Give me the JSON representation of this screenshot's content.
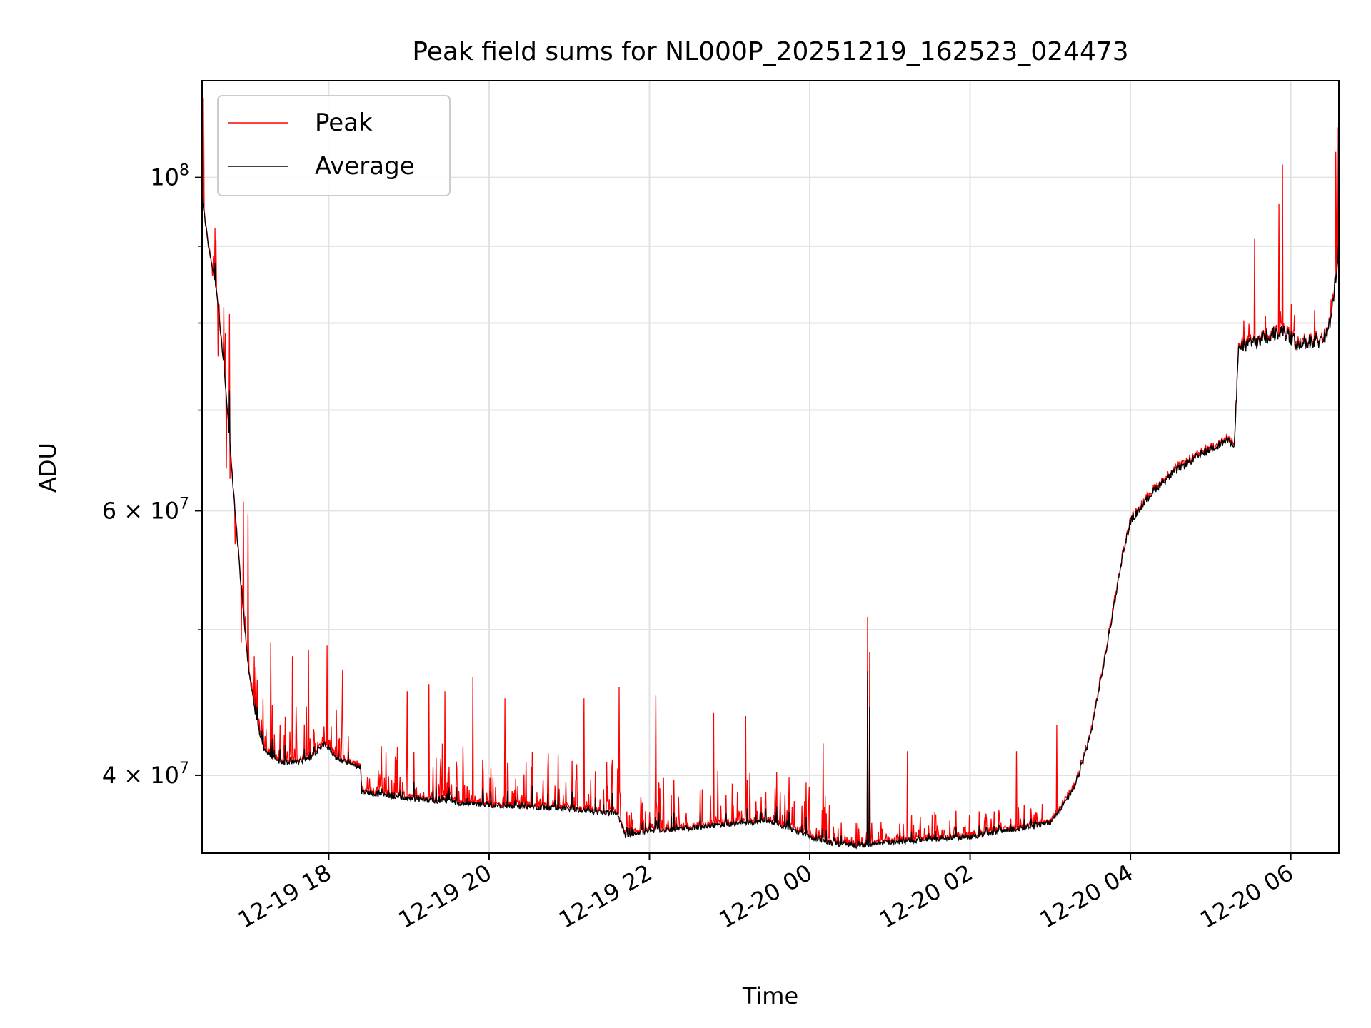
{
  "chart_data": {
    "type": "line",
    "title": "Peak field sums for NL000P_20251219_162523_024473",
    "xlabel": "Time",
    "ylabel": "ADU",
    "yscale": "log",
    "grid": true,
    "legend_position": "top-left",
    "x_unit": "hours since 12-19 00:00",
    "xlim": [
      16.42,
      30.6
    ],
    "ylim": [
      35500000,
      116000000
    ],
    "x_ticks": [
      {
        "value": 18,
        "label": "12-19 18"
      },
      {
        "value": 20,
        "label": "12-19 20"
      },
      {
        "value": 22,
        "label": "12-19 22"
      },
      {
        "value": 24,
        "label": "12-20 00"
      },
      {
        "value": 26,
        "label": "12-20 02"
      },
      {
        "value": 28,
        "label": "12-20 04"
      },
      {
        "value": 30,
        "label": "12-20 06"
      }
    ],
    "y_ticks_major": [
      {
        "value": 40000000,
        "base": "4",
        "exp": "7"
      },
      {
        "value": 60000000,
        "base": "6",
        "exp": "7"
      },
      {
        "value": 100000000,
        "base": "",
        "exp": "8"
      }
    ],
    "y_ticks_minor": [
      50000000,
      70000000,
      80000000,
      90000000
    ],
    "series": [
      {
        "name": "Peak",
        "color": "#ff0000",
        "baseline": "average",
        "spike_ranges": [
          [
            16.45,
            17.0
          ],
          [
            17.0,
            18.4
          ],
          [
            18.4,
            21.6
          ],
          [
            21.6,
            23.8
          ],
          [
            23.8,
            24.6
          ],
          [
            24.6,
            25.4
          ],
          [
            25.4,
            27.0
          ]
        ],
        "spikes": [
          [
            16.44,
            113000000
          ],
          [
            16.55,
            86000000
          ],
          [
            16.62,
            76000000
          ],
          [
            16.72,
            64000000
          ],
          [
            16.77,
            63000000
          ],
          [
            16.83,
            57000000
          ],
          [
            16.91,
            49000000
          ],
          [
            17.07,
            48000000
          ],
          [
            17.28,
            49000000
          ],
          [
            17.55,
            48000000
          ],
          [
            17.75,
            48500000
          ],
          [
            17.98,
            48800000
          ],
          [
            18.17,
            47000000
          ],
          [
            18.98,
            45500000
          ],
          [
            19.25,
            46000000
          ],
          [
            19.45,
            45500000
          ],
          [
            19.8,
            46500000
          ],
          [
            20.2,
            45000000
          ],
          [
            21.18,
            45000000
          ],
          [
            21.62,
            45800000
          ],
          [
            22.08,
            45200000
          ],
          [
            22.8,
            44000000
          ],
          [
            23.2,
            43800000
          ],
          [
            24.17,
            42000000
          ],
          [
            24.72,
            51000000
          ],
          [
            24.75,
            48300000
          ],
          [
            25.22,
            41500000
          ],
          [
            26.58,
            41500000
          ],
          [
            27.08,
            43200000
          ],
          [
            29.9,
            102000000
          ],
          [
            29.85,
            96000000
          ],
          [
            29.55,
            91000000
          ],
          [
            30.58,
            108000000
          ],
          [
            30.56,
            104000000
          ]
        ]
      },
      {
        "name": "Average",
        "color": "#000000",
        "anchors": [
          [
            16.42,
            97000000
          ],
          [
            16.5,
            90000000
          ],
          [
            16.6,
            84000000
          ],
          [
            16.7,
            74000000
          ],
          [
            16.8,
            63000000
          ],
          [
            16.9,
            54000000
          ],
          [
            17.0,
            47000000
          ],
          [
            17.1,
            43500000
          ],
          [
            17.2,
            41500000
          ],
          [
            17.4,
            40800000
          ],
          [
            17.6,
            40800000
          ],
          [
            17.75,
            41000000
          ],
          [
            17.95,
            42000000
          ],
          [
            18.1,
            41000000
          ],
          [
            18.4,
            40500000
          ],
          [
            18.41,
            39000000
          ],
          [
            19.0,
            38600000
          ],
          [
            20.0,
            38200000
          ],
          [
            21.0,
            38000000
          ],
          [
            21.6,
            37700000
          ],
          [
            21.7,
            36500000
          ],
          [
            22.0,
            36700000
          ],
          [
            23.0,
            37100000
          ],
          [
            23.5,
            37300000
          ],
          [
            23.9,
            36600000
          ],
          [
            24.2,
            36100000
          ],
          [
            24.6,
            35900000
          ],
          [
            25.0,
            36100000
          ],
          [
            26.0,
            36400000
          ],
          [
            26.5,
            36800000
          ],
          [
            27.0,
            37200000
          ],
          [
            27.3,
            39200000
          ],
          [
            27.5,
            42500000
          ],
          [
            27.7,
            48500000
          ],
          [
            27.9,
            56000000
          ],
          [
            28.0,
            59000000
          ],
          [
            28.3,
            62000000
          ],
          [
            28.6,
            64000000
          ],
          [
            28.9,
            65500000
          ],
          [
            29.2,
            66800000
          ],
          [
            29.3,
            66500000
          ],
          [
            29.35,
            77000000
          ],
          [
            29.6,
            78000000
          ],
          [
            29.9,
            79000000
          ],
          [
            30.1,
            77500000
          ],
          [
            30.4,
            78000000
          ],
          [
            30.5,
            80000000
          ],
          [
            30.6,
            90000000
          ]
        ]
      }
    ]
  }
}
